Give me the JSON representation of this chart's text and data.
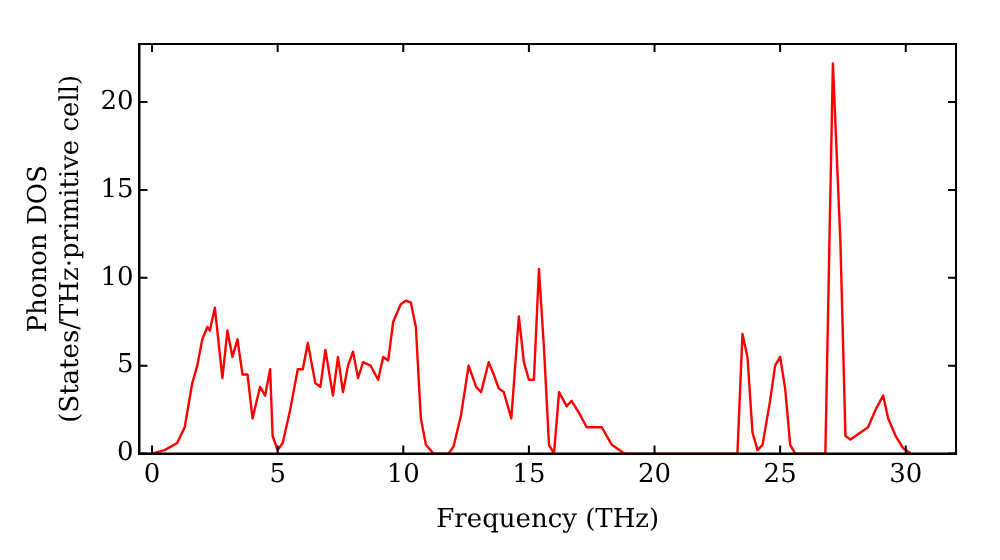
{
  "chart_data": {
    "type": "line",
    "xlabel": "Frequency (THz)",
    "ylabel": "Phonon DOS\n(States/THz·primitive cell)",
    "xlim": [
      -0.5,
      32
    ],
    "ylim": [
      0,
      23.3
    ],
    "xticks": [
      0,
      5,
      10,
      15,
      20,
      25,
      30
    ],
    "yticks": [
      0,
      5,
      10,
      15,
      20
    ],
    "grid": false,
    "legend": false,
    "series": [
      {
        "color": "#ff0000",
        "x": [
          0,
          0.5,
          1,
          1.3,
          1.6,
          1.8,
          2.0,
          2.2,
          2.3,
          2.5,
          2.8,
          3.0,
          3.2,
          3.4,
          3.6,
          3.8,
          4.0,
          4.3,
          4.5,
          4.7,
          4.8,
          5.0,
          5.2,
          5.5,
          5.8,
          6.0,
          6.2,
          6.5,
          6.7,
          6.9,
          7.2,
          7.4,
          7.6,
          7.8,
          8.0,
          8.2,
          8.4,
          8.7,
          9.0,
          9.2,
          9.4,
          9.6,
          9.9,
          10.1,
          10.3,
          10.5,
          10.7,
          10.9,
          11.2,
          11.8,
          12.0,
          12.3,
          12.6,
          12.9,
          13.1,
          13.4,
          13.6,
          13.8,
          14.0,
          14.3,
          14.6,
          14.8,
          15.0,
          15.2,
          15.4,
          15.6,
          15.8,
          16.0,
          16.2,
          16.5,
          16.7,
          17.0,
          17.3,
          17.6,
          17.9,
          18.3,
          18.8,
          23.3,
          23.5,
          23.7,
          23.9,
          24.1,
          24.3,
          24.6,
          24.8,
          25.0,
          25.2,
          25.4,
          25.6,
          26.8,
          27.1,
          27.4,
          27.6,
          27.8,
          28.2,
          28.5,
          28.8,
          29.1,
          29.3,
          29.6,
          29.9,
          30.2
        ],
        "values": [
          0,
          0.2,
          0.6,
          1.5,
          4,
          5,
          6.5,
          7.2,
          7,
          8.3,
          4.3,
          7,
          5.5,
          6.5,
          4.5,
          4.5,
          2,
          3.8,
          3.3,
          4.8,
          1,
          0.2,
          0.6,
          2.5,
          4.8,
          4.8,
          6.3,
          4,
          3.8,
          5.9,
          3.3,
          5.5,
          3.5,
          5,
          5.8,
          4.3,
          5.2,
          5,
          4.2,
          5.5,
          5.3,
          7.5,
          8.5,
          8.7,
          8.6,
          7.2,
          2,
          0.5,
          0,
          0,
          0.4,
          2.2,
          5,
          3.8,
          3.5,
          5.2,
          4.5,
          3.7,
          3.5,
          2,
          7.8,
          5.2,
          4.2,
          4.2,
          10.5,
          6,
          0.5,
          0,
          3.5,
          2.7,
          3,
          2.3,
          1.5,
          1.5,
          1.5,
          0.5,
          0,
          0,
          6.8,
          5.5,
          1.2,
          0.2,
          0.5,
          3,
          5,
          5.5,
          3.7,
          0.5,
          0,
          0,
          22.2,
          12,
          1,
          0.8,
          1.2,
          1.5,
          2.5,
          3.3,
          2,
          1,
          0.3,
          0
        ]
      }
    ]
  }
}
